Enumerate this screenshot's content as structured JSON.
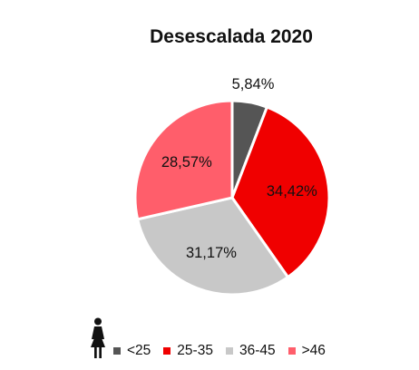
{
  "chart_data": {
    "type": "pie",
    "title": "Desescalada 2020",
    "slices": [
      {
        "label": "<25",
        "value": 5.84,
        "value_label": "5,84%",
        "color": "#555555"
      },
      {
        "label": "25-35",
        "value": 34.42,
        "value_label": "34,42%",
        "color": "#f00000"
      },
      {
        "label": "36-45",
        "value": 31.17,
        "value_label": "31,17%",
        "color": "#c8c8c8"
      },
      {
        "label": ">46",
        "value": 28.57,
        "value_label": "28,57%",
        "color": "#ff5e6b"
      }
    ],
    "start": "12 o'clock, clockwise",
    "legend_position": "bottom",
    "legend_icon": "woman-icon"
  }
}
